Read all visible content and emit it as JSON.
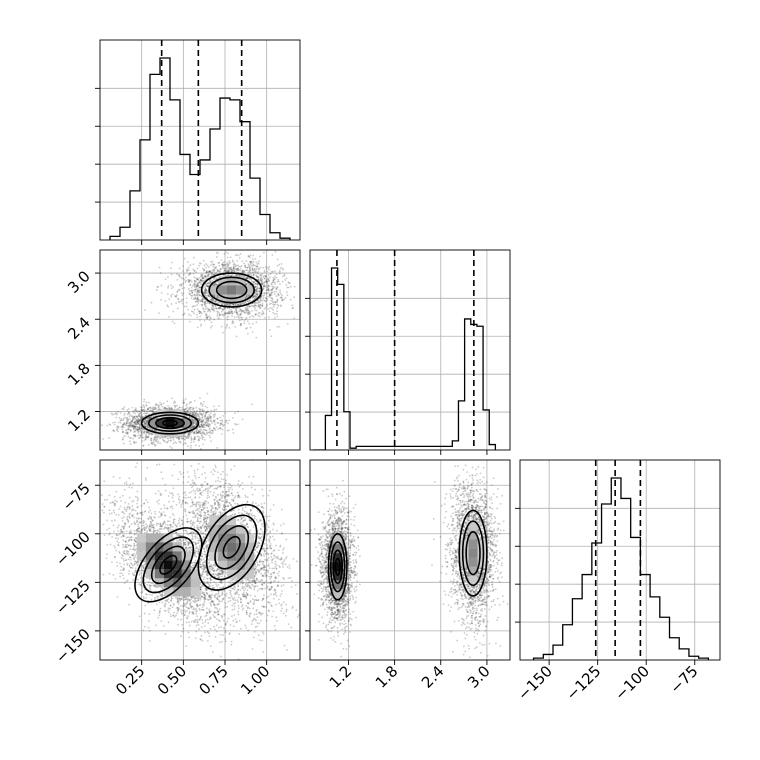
{
  "chart_data": {
    "type": "corner",
    "title": "",
    "grid": true,
    "parameters": [
      {
        "range": [
          0.0,
          1.2
        ],
        "ticks": [
          0.25,
          0.5,
          0.75,
          1.0
        ],
        "tick_labels": [
          "0.25",
          "0.50",
          "0.75",
          "1.00"
        ],
        "quantiles": [
          0.37,
          0.59,
          0.85
        ],
        "hist_bin_edges": [
          0.06,
          0.12,
          0.18,
          0.24,
          0.3,
          0.36,
          0.42,
          0.48,
          0.54,
          0.6,
          0.66,
          0.72,
          0.78,
          0.84,
          0.9,
          0.96,
          1.02,
          1.08,
          1.14
        ],
        "hist_counts": [
          0.02,
          0.07,
          0.27,
          0.55,
          0.91,
          1.0,
          0.77,
          0.47,
          0.36,
          0.44,
          0.61,
          0.78,
          0.77,
          0.65,
          0.34,
          0.14,
          0.04,
          0.01
        ]
      },
      {
        "range": [
          0.7,
          3.3
        ],
        "ticks": [
          1.2,
          1.8,
          2.4,
          3.0
        ],
        "tick_labels": [
          "1.2",
          "1.8",
          "2.4",
          "3.0"
        ],
        "quantiles": [
          1.05,
          1.8,
          2.83
        ],
        "hist_bin_edges": [
          0.74,
          0.9,
          0.98,
          1.06,
          1.14,
          1.22,
          1.3,
          2.55,
          2.63,
          2.71,
          2.79,
          2.87,
          2.95,
          3.03,
          3.11
        ],
        "hist_counts": [
          0.0,
          0.19,
          1.0,
          0.91,
          0.21,
          0.01,
          0.02,
          0.05,
          0.27,
          0.72,
          0.69,
          0.68,
          0.22,
          0.03
        ]
      },
      {
        "range": [
          -165,
          -62
        ],
        "ticks": [
          -150,
          -125,
          -100,
          -75
        ],
        "tick_labels": [
          "−150",
          "−125",
          "−100",
          "−75"
        ],
        "quantiles": [
          -126,
          -116,
          -103
        ],
        "hist_bin_edges": [
          -158,
          -153,
          -148,
          -143,
          -138,
          -133,
          -128,
          -123,
          -118,
          -113,
          -108,
          -103,
          -98,
          -93,
          -88,
          -83,
          -78,
          -73,
          -68
        ],
        "hist_counts": [
          0.01,
          0.03,
          0.08,
          0.19,
          0.33,
          0.46,
          0.63,
          0.84,
          0.98,
          0.87,
          0.66,
          0.46,
          0.34,
          0.23,
          0.12,
          0.06,
          0.02,
          0.01
        ]
      }
    ],
    "pairs": [
      {
        "x_param": 0,
        "y_param": 1,
        "modes": [
          {
            "center": [
              0.42,
              1.05
            ],
            "spread": [
              0.085,
              0.07
            ],
            "peak": 1.0
          },
          {
            "center": [
              0.79,
              2.78
            ],
            "spread": [
              0.09,
              0.11
            ],
            "peak": 0.55
          }
        ]
      },
      {
        "x_param": 0,
        "y_param": 2,
        "modes": [
          {
            "center": [
              0.41,
              -116
            ],
            "spread": [
              0.1,
              9.5
            ],
            "peak": 1.0,
            "rho": 0.55
          },
          {
            "center": [
              0.79,
              -107
            ],
            "spread": [
              0.1,
              11.0
            ],
            "peak": 0.6,
            "rho": 0.45
          }
        ]
      },
      {
        "x_param": 1,
        "y_param": 2,
        "modes": [
          {
            "center": [
              1.06,
              -117
            ],
            "spread": [
              0.06,
              8.5
            ],
            "peak": 1.0
          },
          {
            "center": [
              2.82,
              -110
            ],
            "spread": [
              0.09,
              11.0
            ],
            "peak": 0.5
          }
        ]
      }
    ]
  }
}
